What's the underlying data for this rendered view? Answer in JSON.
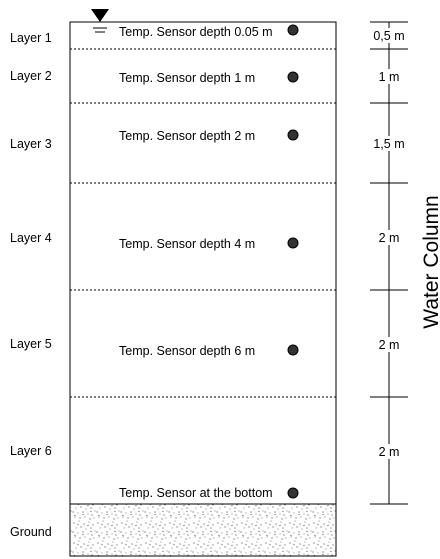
{
  "layers": [
    {
      "label": "Layer 1",
      "sensor": "Temp. Sensor depth 0.05 m",
      "thickness": "0,5 m"
    },
    {
      "label": "Layer 2",
      "sensor": "Temp. Sensor depth 1 m",
      "thickness": "1 m"
    },
    {
      "label": "Layer 3",
      "sensor": "Temp. Sensor depth 2 m",
      "thickness": "1,5 m"
    },
    {
      "label": "Layer 4",
      "sensor": "Temp. Sensor depth 4 m",
      "thickness": "2 m"
    },
    {
      "label": "Layer 5",
      "sensor": "Temp. Sensor depth 6 m",
      "thickness": "2 m"
    },
    {
      "label": "Layer 6",
      "sensor": "",
      "thickness": "2 m"
    }
  ],
  "bottom_sensor": "Temp. Sensor at the bottom",
  "ground_label": "Ground",
  "side_label": "Water Column"
}
